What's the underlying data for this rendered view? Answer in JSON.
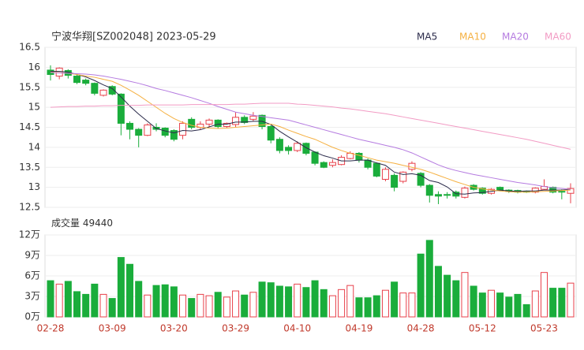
{
  "chart_data": [
    {
      "type": "candlestick",
      "title": "宁波华翔[SZ002048] 2023-05-29",
      "up_color": "#e8414b",
      "down_color": "#1aad3b",
      "open": [
        15.93,
        15.78,
        15.92,
        15.78,
        15.68,
        15.6,
        15.3,
        15.52,
        15.33,
        14.6,
        14.45,
        14.3,
        14.5,
        14.48,
        14.42,
        14.3,
        14.7,
        14.5,
        14.58,
        14.68,
        14.52,
        14.57,
        14.75,
        14.7,
        14.8,
        14.52,
        14.2,
        14.0,
        13.92,
        14.1,
        13.88,
        13.62,
        13.55,
        13.57,
        13.72,
        13.85,
        13.68,
        13.6,
        13.2,
        13.3,
        13.15,
        13.45,
        13.35,
        13.05,
        12.82,
        12.82,
        12.88,
        12.75,
        13.05,
        12.98,
        12.85,
        13.0,
        12.93,
        12.92,
        12.9,
        12.88,
        12.95,
        13.0,
        12.9,
        12.85
      ],
      "high": [
        16.05,
        16.0,
        15.95,
        15.82,
        15.72,
        15.62,
        15.45,
        15.55,
        15.35,
        14.65,
        14.48,
        14.6,
        14.6,
        14.5,
        14.45,
        14.65,
        14.75,
        14.65,
        14.72,
        14.7,
        14.62,
        14.88,
        14.8,
        14.88,
        14.82,
        14.55,
        14.25,
        14.05,
        14.15,
        14.12,
        13.9,
        13.65,
        13.7,
        13.8,
        13.9,
        13.88,
        13.72,
        13.62,
        13.5,
        13.35,
        13.4,
        13.65,
        13.38,
        13.08,
        12.9,
        12.88,
        12.92,
        13.02,
        13.08,
        13.0,
        12.98,
        13.02,
        12.95,
        12.94,
        12.92,
        13.0,
        13.2,
        13.02,
        12.95,
        13.1
      ],
      "low": [
        15.67,
        15.7,
        15.72,
        15.58,
        15.55,
        15.3,
        15.27,
        15.3,
        14.3,
        14.2,
        14.0,
        14.28,
        14.4,
        14.25,
        14.15,
        14.2,
        14.45,
        14.45,
        14.5,
        14.48,
        14.48,
        14.5,
        14.58,
        14.65,
        14.45,
        14.1,
        13.85,
        13.82,
        13.88,
        13.8,
        13.55,
        13.48,
        13.5,
        13.55,
        13.7,
        13.62,
        13.45,
        13.25,
        13.15,
        12.9,
        13.1,
        13.4,
        13.0,
        12.62,
        12.58,
        12.72,
        12.72,
        12.72,
        12.92,
        12.82,
        12.82,
        12.9,
        12.86,
        12.85,
        12.86,
        12.85,
        12.93,
        12.85,
        12.7,
        12.6
      ],
      "close": [
        15.82,
        15.98,
        15.8,
        15.62,
        15.6,
        15.35,
        15.43,
        15.33,
        14.6,
        14.45,
        14.3,
        14.56,
        14.45,
        14.3,
        14.2,
        14.6,
        14.5,
        14.58,
        14.68,
        14.52,
        14.6,
        14.75,
        14.62,
        14.78,
        14.52,
        14.18,
        13.92,
        13.92,
        14.1,
        13.85,
        13.6,
        13.5,
        13.62,
        13.75,
        13.85,
        13.68,
        13.5,
        13.28,
        13.45,
        13.0,
        13.38,
        13.6,
        13.05,
        12.8,
        12.78,
        12.8,
        12.78,
        12.98,
        12.95,
        12.85,
        12.95,
        12.92,
        12.9,
        12.88,
        12.88,
        12.98,
        13.02,
        12.88,
        12.88,
        12.97
      ],
      "series": [
        {
          "name": "MA5",
          "color": "#2a2a4a",
          "values": [
            15.9,
            15.9,
            15.88,
            15.82,
            15.76,
            15.67,
            15.56,
            15.47,
            15.26,
            15.03,
            14.83,
            14.65,
            14.47,
            14.41,
            14.36,
            14.42,
            14.41,
            14.44,
            14.51,
            14.58,
            14.58,
            14.63,
            14.63,
            14.65,
            14.65,
            14.57,
            14.4,
            14.26,
            14.13,
            13.99,
            13.88,
            13.79,
            13.73,
            13.66,
            13.66,
            13.68,
            13.68,
            13.61,
            13.55,
            13.38,
            13.32,
            13.34,
            13.3,
            13.17,
            13.12,
            13.01,
            12.84,
            12.83,
            12.86,
            12.87,
            12.9,
            12.93,
            12.91,
            12.9,
            12.91,
            12.91,
            12.93,
            12.93,
            12.93,
            12.95
          ]
        },
        {
          "name": "MA10",
          "color": "#f5b041",
          "values": [
            15.88,
            15.87,
            15.85,
            15.82,
            15.78,
            15.75,
            15.7,
            15.65,
            15.55,
            15.43,
            15.3,
            15.15,
            15.0,
            14.85,
            14.72,
            14.62,
            14.55,
            14.5,
            14.48,
            14.47,
            14.48,
            14.5,
            14.52,
            14.54,
            14.56,
            14.58,
            14.52,
            14.43,
            14.35,
            14.27,
            14.2,
            14.1,
            14.0,
            13.92,
            13.85,
            13.8,
            13.74,
            13.68,
            13.64,
            13.6,
            13.55,
            13.5,
            13.45,
            13.38,
            13.3,
            13.22,
            13.14,
            13.07,
            13.0,
            12.96,
            12.93,
            12.91,
            12.89,
            12.88,
            12.88,
            12.89,
            12.9,
            12.91,
            12.92,
            12.93
          ]
        },
        {
          "name": "MA20",
          "color": "#b57be0",
          "values": [
            15.87,
            15.86,
            15.85,
            15.84,
            15.83,
            15.81,
            15.78,
            15.74,
            15.7,
            15.65,
            15.6,
            15.54,
            15.47,
            15.42,
            15.36,
            15.3,
            15.24,
            15.17,
            15.1,
            15.02,
            14.95,
            14.88,
            14.84,
            14.8,
            14.77,
            14.74,
            14.71,
            14.68,
            14.62,
            14.56,
            14.5,
            14.44,
            14.38,
            14.32,
            14.26,
            14.2,
            14.15,
            14.1,
            14.05,
            14.0,
            13.94,
            13.86,
            13.76,
            13.66,
            13.56,
            13.48,
            13.42,
            13.37,
            13.32,
            13.28,
            13.24,
            13.2,
            13.16,
            13.12,
            13.09,
            13.06,
            13.02,
            12.99,
            12.97,
            12.95
          ]
        },
        {
          "name": "MA60",
          "color": "#f29bc4",
          "values": [
            15.0,
            15.01,
            15.02,
            15.02,
            15.03,
            15.03,
            15.04,
            15.04,
            15.05,
            15.05,
            15.05,
            15.06,
            15.06,
            15.06,
            15.06,
            15.06,
            15.07,
            15.07,
            15.07,
            15.07,
            15.07,
            15.08,
            15.08,
            15.09,
            15.1,
            15.1,
            15.1,
            15.1,
            15.08,
            15.07,
            15.05,
            15.03,
            15.01,
            14.98,
            14.96,
            14.93,
            14.9,
            14.87,
            14.84,
            14.8,
            14.76,
            14.72,
            14.68,
            14.64,
            14.6,
            14.56,
            14.52,
            14.48,
            14.44,
            14.4,
            14.36,
            14.32,
            14.28,
            14.24,
            14.2,
            14.15,
            14.1,
            14.05,
            14.0,
            13.95
          ]
        }
      ],
      "ylim": [
        12.5,
        16.5
      ],
      "yticks": [
        16.5,
        16,
        15.5,
        15,
        14.5,
        14,
        13.5,
        13,
        12.5
      ],
      "grid": true
    },
    {
      "type": "bar",
      "title": "成交量",
      "latest": 49440,
      "categories": [
        "02-28",
        null,
        null,
        null,
        null,
        null,
        null,
        "03-09",
        null,
        null,
        null,
        null,
        null,
        null,
        "03-20",
        null,
        null,
        null,
        null,
        null,
        null,
        "03-29",
        null,
        null,
        null,
        null,
        null,
        null,
        "04-10",
        null,
        null,
        null,
        null,
        null,
        null,
        "04-19",
        null,
        null,
        null,
        null,
        null,
        null,
        "04-28",
        null,
        null,
        null,
        null,
        null,
        null,
        "05-12",
        null,
        null,
        null,
        null,
        null,
        null,
        "05-23",
        null,
        null,
        null
      ],
      "values": [
        53000,
        48000,
        52000,
        37000,
        33000,
        48000,
        33000,
        27000,
        87000,
        77000,
        52000,
        32000,
        46000,
        47000,
        44000,
        32000,
        27000,
        33000,
        31000,
        36000,
        29000,
        38000,
        32000,
        36000,
        51000,
        50000,
        45000,
        44000,
        48000,
        43000,
        53000,
        40000,
        31000,
        40000,
        46000,
        28000,
        28000,
        31000,
        39000,
        51000,
        35000,
        35000,
        92000,
        112000,
        74000,
        61000,
        53000,
        65000,
        45000,
        35000,
        39000,
        35000,
        29000,
        33000,
        18000,
        38000,
        65000,
        42000,
        42000,
        49440
      ],
      "ylim": [
        0,
        120000
      ],
      "yticks": [
        {
          "value": 120000,
          "label": "12万"
        },
        {
          "value": 90000,
          "label": "9万"
        },
        {
          "value": 60000,
          "label": "6万"
        },
        {
          "value": 30000,
          "label": "3万"
        },
        {
          "value": 0,
          "label": "0万"
        }
      ]
    }
  ]
}
